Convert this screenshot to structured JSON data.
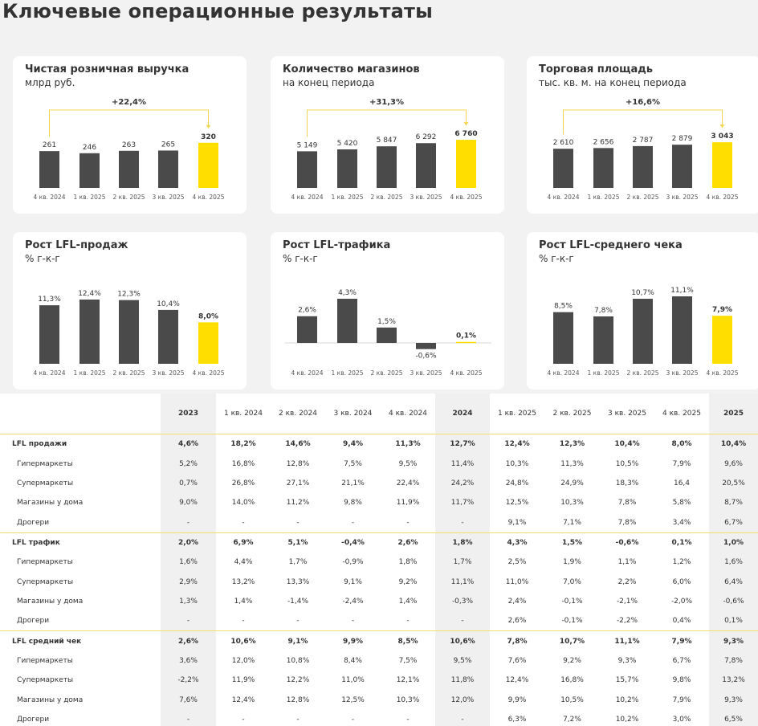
{
  "page": {
    "title": "Ключевые операционные результаты"
  },
  "colors": {
    "dark_bar": "#4a4a4a",
    "highlight_bar": "#ffde00",
    "accent_line": "#f1d44f",
    "text": "#333333"
  },
  "charts": [
    {
      "title": "Чистая розничная выручка",
      "subtitle": "млрд руб."
    },
    {
      "title": "Количество магазинов",
      "subtitle": "на конец периода"
    },
    {
      "title": "Торговая площадь",
      "subtitle": "тыс. кв. м. на конец периода"
    },
    {
      "title": "Рост LFL-продаж",
      "subtitle": "% г-к-г"
    },
    {
      "title": "Рост LFL-трафика",
      "subtitle": "% г-к-г"
    },
    {
      "title": "Рост LFL-среднего чека",
      "subtitle": "% г-к-г"
    }
  ],
  "chart_data": [
    {
      "type": "bar",
      "title": "Чистая розничная выручка",
      "subtitle": "млрд руб.",
      "categories": [
        "4 кв. 2024",
        "1 кв. 2025",
        "2 кв. 2025",
        "3 кв. 2025",
        "4 кв. 2025"
      ],
      "values": [
        261,
        246,
        263,
        265,
        320
      ],
      "labels": [
        "261",
        "246",
        "263",
        "265",
        "320"
      ],
      "highlight_index": 4,
      "growth_label": "+22,4%",
      "ylim": [
        0,
        370
      ]
    },
    {
      "type": "bar",
      "title": "Количество магазинов",
      "subtitle": "на конец периода",
      "categories": [
        "4 кв. 2024",
        "1 кв. 2025",
        "2 кв. 2025",
        "3 кв. 2025",
        "4 кв. 2025"
      ],
      "values": [
        5149,
        5420,
        5847,
        6292,
        6760
      ],
      "labels": [
        "5 149",
        "5 420",
        "5 847",
        "6 292",
        "6 760"
      ],
      "highlight_index": 4,
      "growth_label": "+31,3%",
      "ylim": [
        0,
        7900
      ]
    },
    {
      "type": "bar",
      "title": "Торговая площадь",
      "subtitle": "тыс. кв. м. на конец периода",
      "categories": [
        "4 кв. 2024",
        "1 кв. 2025",
        "2 кв. 2025",
        "3 кв. 2025",
        "4 кв. 2025"
      ],
      "values": [
        2610,
        2656,
        2787,
        2879,
        3043
      ],
      "labels": [
        "2 610",
        "2 656",
        "2 787",
        "2 879",
        "3 043"
      ],
      "highlight_index": 4,
      "growth_label": "+16,6%",
      "ylim": [
        0,
        3530
      ]
    },
    {
      "type": "bar",
      "title": "Рост LFL-продаж",
      "subtitle": "% г-к-г",
      "categories": [
        "4 кв. 2024",
        "1 кв. 2025",
        "2 кв. 2025",
        "3 кв. 2025",
        "4 кв. 2025"
      ],
      "values": [
        11.3,
        12.4,
        12.3,
        10.4,
        8.0
      ],
      "labels": [
        "11,3%",
        "12,4%",
        "12,3%",
        "10,4%",
        "8,0%"
      ],
      "highlight_index": 4,
      "ylim": [
        0,
        12.4
      ]
    },
    {
      "type": "bar",
      "title": "Рост LFL-трафика",
      "subtitle": "% г-к-г",
      "categories": [
        "4 кв. 2024",
        "1 кв. 2025",
        "2 кв. 2025",
        "3 кв. 2025",
        "4 кв. 2025"
      ],
      "values": [
        2.6,
        4.3,
        1.5,
        -0.6,
        0.1
      ],
      "labels": [
        "2,6%",
        "4,3%",
        "1,5%",
        "-0,6%",
        "0,1%"
      ],
      "highlight_index": 4,
      "ylim": [
        -0.6,
        4.3
      ]
    },
    {
      "type": "bar",
      "title": "Рост LFL-среднего чека",
      "subtitle": "% г-к-г",
      "categories": [
        "4 кв. 2024",
        "1 кв. 2025",
        "2 кв. 2025",
        "3 кв. 2025",
        "4 кв. 2025"
      ],
      "values": [
        8.5,
        7.8,
        10.7,
        11.1,
        7.9
      ],
      "labels": [
        "8,5%",
        "7,8%",
        "10,7%",
        "11,1%",
        "7,9%"
      ],
      "highlight_index": 4,
      "ylim": [
        0,
        11.1
      ]
    },
    {
      "type": "table",
      "columns": [
        "2023",
        "1 кв. 2024",
        "2 кв. 2024",
        "3 кв. 2024",
        "4 кв. 2024",
        "2024",
        "1 кв. 2025",
        "2 кв. 2025",
        "3 кв. 2025",
        "4 кв. 2025",
        "2025"
      ],
      "annual_columns": [
        0,
        5,
        10
      ],
      "rows": [
        {
          "label": "LFL продажи",
          "group": true,
          "values": [
            "4,6%",
            "18,2%",
            "14,6%",
            "9,4%",
            "11,3%",
            "12,7%",
            "12,4%",
            "12,3%",
            "10,4%",
            "8,0%",
            "10,4%"
          ]
        },
        {
          "label": "Гипермаркеты",
          "group": false,
          "values": [
            "5,2%",
            "16,8%",
            "12,8%",
            "7,5%",
            "9,5%",
            "11,4%",
            "10,3%",
            "11,3%",
            "10,5%",
            "7,9%",
            "9,6%"
          ]
        },
        {
          "label": "Супермаркеты",
          "group": false,
          "values": [
            "0,7%",
            "26,8%",
            "27,1%",
            "21,1%",
            "22,4%",
            "24,2%",
            "24,8%",
            "24,9%",
            "18,3%",
            "16,4",
            "20,5%"
          ]
        },
        {
          "label": "Магазины у дома",
          "group": false,
          "values": [
            "9,0%",
            "14,0%",
            "11,2%",
            "9,8%",
            "11,9%",
            "11,7%",
            "12,5%",
            "10,3%",
            "7,8%",
            "5,8%",
            "8,7%"
          ]
        },
        {
          "label": "Дрогери",
          "group": false,
          "values": [
            "-",
            "-",
            "-",
            "-",
            "-",
            "-",
            "9,1%",
            "7,1%",
            "7,8%",
            "3,4%",
            "6,7%"
          ]
        },
        {
          "label": "LFL трафик",
          "group": true,
          "values": [
            "2,0%",
            "6,9%",
            "5,1%",
            "-0,4%",
            "2,6%",
            "1,8%",
            "4,3%",
            "1,5%",
            "-0,6%",
            "0,1%",
            "1,0%"
          ]
        },
        {
          "label": "Гипермаркеты",
          "group": false,
          "values": [
            "1,6%",
            "4,4%",
            "1,7%",
            "-0,9%",
            "1,8%",
            "1,7%",
            "2,5%",
            "1,9%",
            "1,1%",
            "1,2%",
            "1,6%"
          ]
        },
        {
          "label": "Супермаркеты",
          "group": false,
          "values": [
            "2,9%",
            "13,2%",
            "13,3%",
            "9,1%",
            "9,2%",
            "11,1%",
            "11,0%",
            "7,0%",
            "2,2%",
            "6,0%",
            "6,4%"
          ]
        },
        {
          "label": "Магазины у дома",
          "group": false,
          "values": [
            "1,3%",
            "1,4%",
            "-1,4%",
            "-2,4%",
            "1,4%",
            "-0,3%",
            "2,4%",
            "-0,1%",
            "-2,1%",
            "-2,0%",
            "-0,6%"
          ]
        },
        {
          "label": "Дрогери",
          "group": false,
          "values": [
            "-",
            "-",
            "-",
            "-",
            "-",
            "-",
            "2,6%",
            "-0,1%",
            "-2,2%",
            "0,4%",
            "0,1%"
          ]
        },
        {
          "label": "LFL средний чек",
          "group": true,
          "values": [
            "2,6%",
            "10,6%",
            "9,1%",
            "9,9%",
            "8,5%",
            "10,6%",
            "7,8%",
            "10,7%",
            "11,1%",
            "7,9%",
            "9,3%"
          ]
        },
        {
          "label": "Гипермаркеты",
          "group": false,
          "values": [
            "3,6%",
            "12,0%",
            "10,8%",
            "8,4%",
            "7,5%",
            "9,5%",
            "7,6%",
            "9,2%",
            "9,3%",
            "6,7%",
            "7,8%"
          ]
        },
        {
          "label": "Супермаркеты",
          "group": false,
          "values": [
            "-2,2%",
            "11,9%",
            "12,2%",
            "11,0%",
            "12,1%",
            "11,8%",
            "12,4%",
            "16,8%",
            "15,7%",
            "9,8%",
            "13,2%"
          ]
        },
        {
          "label": "Магазины у дома",
          "group": false,
          "values": [
            "7,6%",
            "12,4%",
            "12,8%",
            "12,5%",
            "10,3%",
            "12,0%",
            "9,9%",
            "10,5%",
            "10,2%",
            "7,9%",
            "9,3%"
          ]
        },
        {
          "label": "Дрогери",
          "group": false,
          "values": [
            "-",
            "-",
            "-",
            "-",
            "-",
            "-",
            "6,3%",
            "7,2%",
            "10,2%",
            "3,0%",
            "6,5%"
          ]
        }
      ]
    }
  ]
}
